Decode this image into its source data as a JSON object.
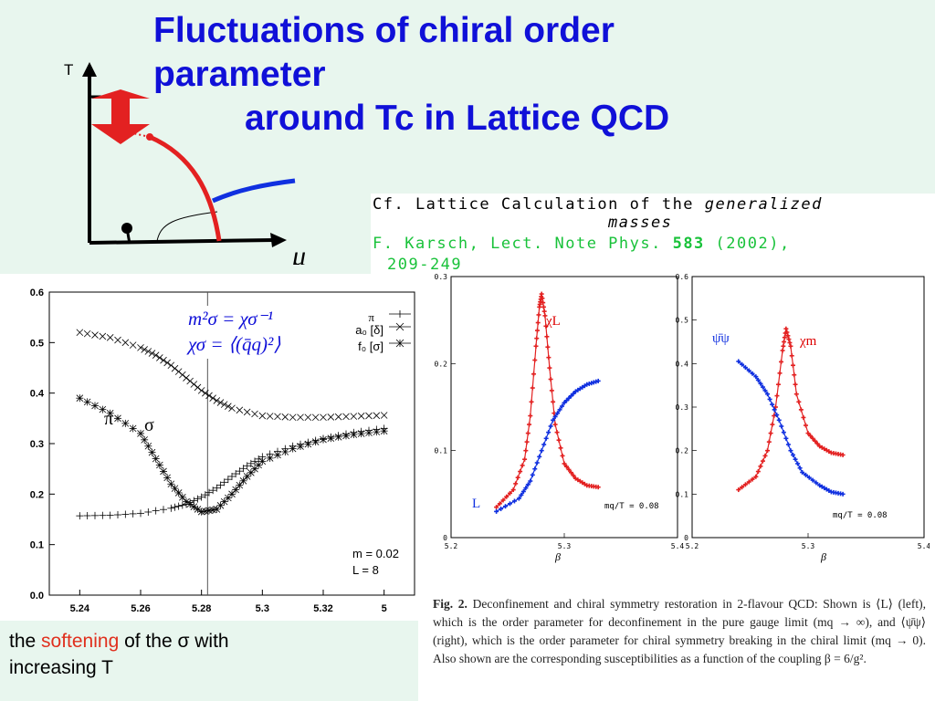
{
  "title": {
    "line1": "Fluctuations of chiral order",
    "line2": "parameter",
    "line3": "around Tc in Lattice QCD"
  },
  "phase_diagram": {
    "y_label": "T",
    "x_label": "μ",
    "colors": {
      "axis": "#000000",
      "red": "#e32121",
      "blue": "#1030e0"
    }
  },
  "reference": {
    "line1_a": "Cf.  Lattice Calculation of the ",
    "line1_b": "generalized",
    "line2": "masses",
    "line3_a": "F. Karsch, Lect. Note Phys. ",
    "line3_b": "583",
    "line3_c": " (2002),",
    "line4": "209-249"
  },
  "main_plot": {
    "formula1": "m²σ = χσ⁻¹",
    "formula2": "χσ = ⟨(q̄q)²⟩",
    "legend": [
      "π",
      "a₀ [δ]",
      "f₀ [σ]"
    ],
    "label_pi": "π",
    "label_sigma": "σ",
    "note_m": "m = 0.02",
    "note_L": "L = 8"
  },
  "left_panel": {
    "label_chi": "χL",
    "label_L": "L",
    "note": "mq/T = 0.08",
    "xlabel": "β"
  },
  "right_panel": {
    "label_psibarpsi": "ψ̄ψ",
    "label_chi": "χm",
    "note": "mq/T = 0.08",
    "xlabel": "β"
  },
  "caption": {
    "label": "Fig. 2.",
    "text": " Deconfinement and chiral symmetry restoration in 2-flavour QCD: Shown is ⟨L⟩ (left), which is the order parameter for deconfinement in the pure gauge limit (mq → ∞), and ⟨ψ̄ψ⟩ (right), which is the order parameter for chiral symmetry breaking in the chiral limit (mq → 0). Also shown are the corresponding susceptibilities as a function of the coupling β = 6/g²."
  },
  "bottom": {
    "t1": "the ",
    "t2": "softening",
    "t3": " of  the σ with",
    "t4": "increasing T"
  },
  "chart_data": [
    {
      "type": "scatter",
      "xlim": [
        5.23,
        5.35
      ],
      "ylim": [
        0.0,
        0.6
      ],
      "xticks": [
        "5.24",
        "5.26",
        "5.28",
        "5.3",
        "5.32",
        "5"
      ],
      "yticks": [
        "0.0",
        "0.1",
        "0.2",
        "0.3",
        "0.4",
        "0.5",
        "0.6"
      ],
      "vline": 5.282,
      "series": [
        {
          "name": "π",
          "x": [
            5.24,
            5.25,
            5.26,
            5.27,
            5.275,
            5.28,
            5.285,
            5.29,
            5.295,
            5.3,
            5.31,
            5.32,
            5.33,
            5.34
          ],
          "y": [
            0.157,
            0.158,
            0.162,
            0.172,
            0.18,
            0.194,
            0.212,
            0.235,
            0.256,
            0.274,
            0.295,
            0.31,
            0.322,
            0.33
          ]
        },
        {
          "name": "a₀ [δ]",
          "x": [
            5.24,
            5.25,
            5.26,
            5.265,
            5.27,
            5.275,
            5.28,
            5.285,
            5.29,
            5.3,
            5.31,
            5.32,
            5.33,
            5.34
          ],
          "y": [
            0.52,
            0.51,
            0.49,
            0.475,
            0.455,
            0.43,
            0.405,
            0.385,
            0.37,
            0.355,
            0.352,
            0.352,
            0.354,
            0.356
          ]
        },
        {
          "name": "f₀ [σ]",
          "x": [
            5.24,
            5.25,
            5.26,
            5.265,
            5.27,
            5.275,
            5.28,
            5.285,
            5.29,
            5.295,
            5.3,
            5.31,
            5.32,
            5.33,
            5.34
          ],
          "y": [
            0.39,
            0.36,
            0.32,
            0.27,
            0.22,
            0.185,
            0.165,
            0.17,
            0.2,
            0.235,
            0.265,
            0.29,
            0.308,
            0.318,
            0.325
          ]
        }
      ]
    },
    {
      "type": "line",
      "xlim": [
        5.2,
        5.4
      ],
      "ylim": [
        0,
        0.3
      ],
      "xticks": [
        "5.2",
        "5.3",
        "5.4"
      ],
      "yticks": [
        "0",
        "0.1",
        "0.2",
        "0.3"
      ],
      "xlabel": "β",
      "series": [
        {
          "name": "χL",
          "x": [
            5.24,
            5.255,
            5.265,
            5.27,
            5.275,
            5.278,
            5.28,
            5.283,
            5.287,
            5.292,
            5.3,
            5.31,
            5.32,
            5.33
          ],
          "y": [
            0.035,
            0.055,
            0.09,
            0.14,
            0.22,
            0.265,
            0.28,
            0.255,
            0.195,
            0.13,
            0.085,
            0.068,
            0.06,
            0.058
          ]
        },
        {
          "name": "L",
          "x": [
            5.24,
            5.26,
            5.27,
            5.28,
            5.29,
            5.3,
            5.31,
            5.32,
            5.33
          ],
          "y": [
            0.03,
            0.045,
            0.065,
            0.1,
            0.135,
            0.155,
            0.168,
            0.176,
            0.18
          ]
        }
      ]
    },
    {
      "type": "line",
      "xlim": [
        5.2,
        5.4
      ],
      "ylim": [
        0,
        0.6
      ],
      "xticks": [
        "5.2",
        "5.3",
        "5.4"
      ],
      "yticks": [
        "0",
        "0.1",
        "0.2",
        "0.3",
        "0.4",
        "0.5",
        "0.6"
      ],
      "xlabel": "β",
      "series": [
        {
          "name": "χm",
          "x": [
            5.24,
            5.255,
            5.265,
            5.272,
            5.278,
            5.281,
            5.285,
            5.29,
            5.3,
            5.31,
            5.32,
            5.33
          ],
          "y": [
            0.11,
            0.14,
            0.2,
            0.3,
            0.43,
            0.48,
            0.44,
            0.33,
            0.24,
            0.21,
            0.195,
            0.19
          ]
        },
        {
          "name": "ψ̄ψ",
          "x": [
            5.24,
            5.255,
            5.265,
            5.275,
            5.285,
            5.295,
            5.31,
            5.32,
            5.33
          ],
          "y": [
            0.405,
            0.37,
            0.33,
            0.27,
            0.2,
            0.15,
            0.12,
            0.105,
            0.1
          ]
        }
      ]
    }
  ]
}
